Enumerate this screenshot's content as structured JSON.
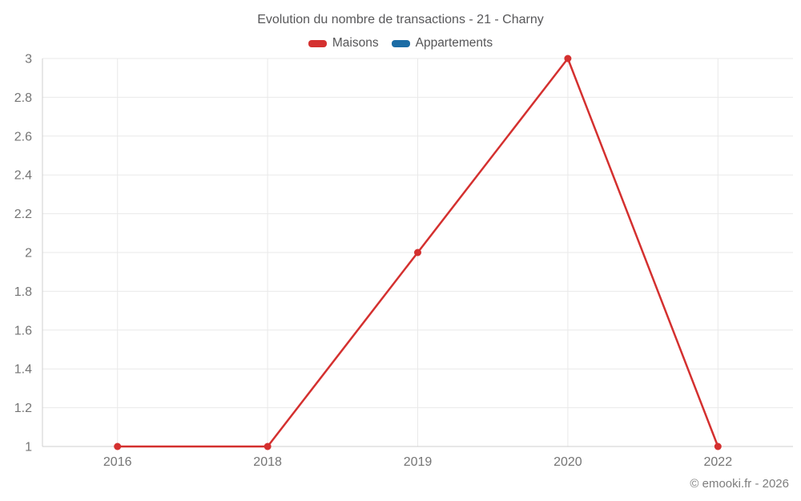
{
  "title": "Evolution du nombre de transactions - 21 - Charny",
  "legend": {
    "items": [
      {
        "label": "Maisons",
        "color": "#d4302f"
      },
      {
        "label": "Appartements",
        "color": "#1b6ca5"
      }
    ]
  },
  "footer": {
    "text": "© emooki.fr - 2026"
  },
  "chart_data": {
    "type": "line",
    "title": "Evolution du nombre de transactions - 21 - Charny",
    "categories": [
      "2016",
      "2018",
      "2019",
      "2020",
      "2022"
    ],
    "series": [
      {
        "name": "Maisons",
        "color": "#d4302f",
        "values": [
          1,
          1,
          2,
          3,
          1
        ]
      },
      {
        "name": "Appartements",
        "color": "#1b6ca5",
        "values": []
      }
    ],
    "xlabel": "",
    "ylabel": "",
    "ylim": [
      1,
      3
    ],
    "ytick_step": 0.2,
    "yticks": [
      1,
      1.2,
      1.4,
      1.6,
      1.8,
      2,
      2.2,
      2.4,
      2.6,
      2.8,
      3
    ],
    "grid": true,
    "legend_position": "top",
    "marker": "circle",
    "colors": {
      "gridline": "#e9e9e9",
      "axis_line": "#cfcfcf",
      "tick_label": "#757575",
      "title_text": "#58585a"
    }
  }
}
